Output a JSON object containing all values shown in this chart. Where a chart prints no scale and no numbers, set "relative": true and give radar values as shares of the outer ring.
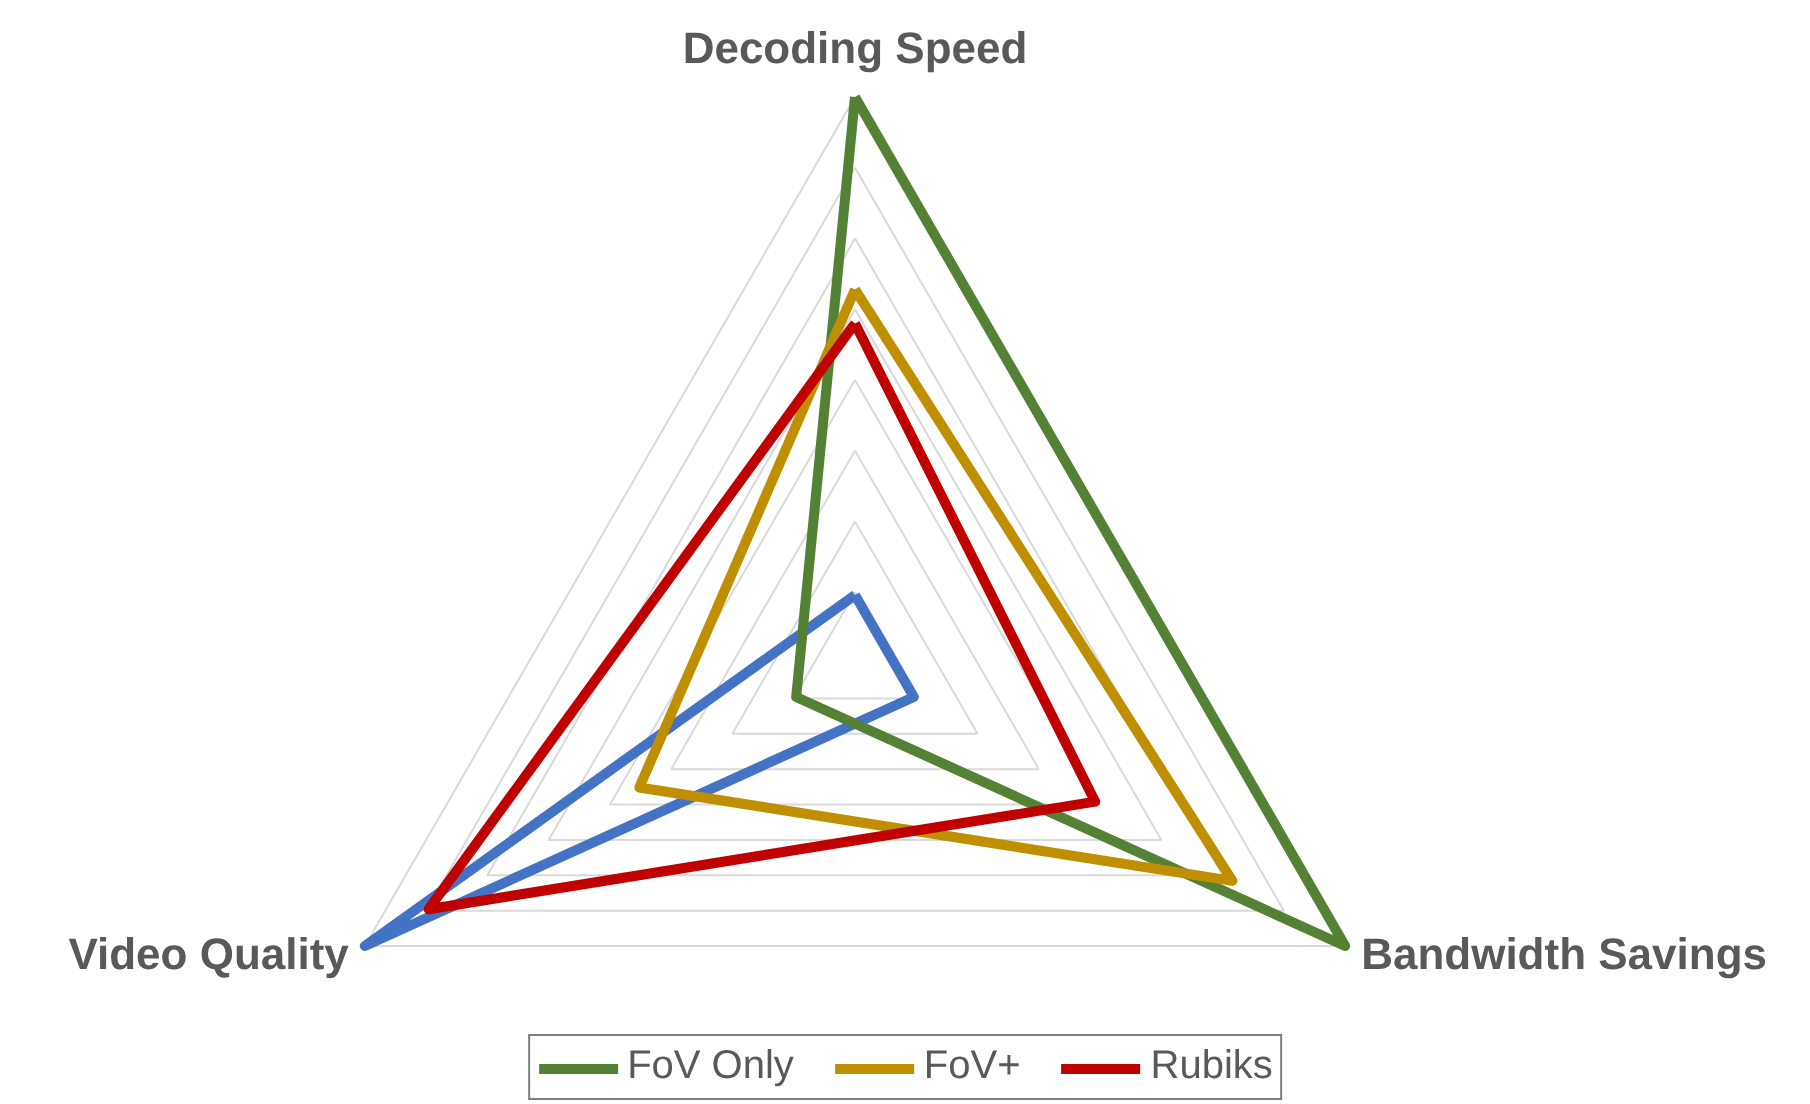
{
  "chart_data": {
    "type": "radar",
    "relative": true,
    "categories": [
      "Decoding Speed",
      "Bandwidth Savings",
      "Video Quality"
    ],
    "series": [
      {
        "color": "#4472c4",
        "values": [
          0.12,
          0.12,
          1.0
        ]
      },
      {
        "name": "FoV Only",
        "color": "#548235",
        "values": [
          1.0,
          1.0,
          0.12
        ]
      },
      {
        "name": "FoV+",
        "color": "#bf8f00",
        "values": [
          0.66,
          0.77,
          0.44
        ]
      },
      {
        "name": "Rubiks",
        "color": "#c00000",
        "values": [
          0.6,
          0.49,
          0.87
        ]
      }
    ],
    "grid": true,
    "legend": "bottom",
    "marker": "none",
    "line_style": "solid"
  }
}
